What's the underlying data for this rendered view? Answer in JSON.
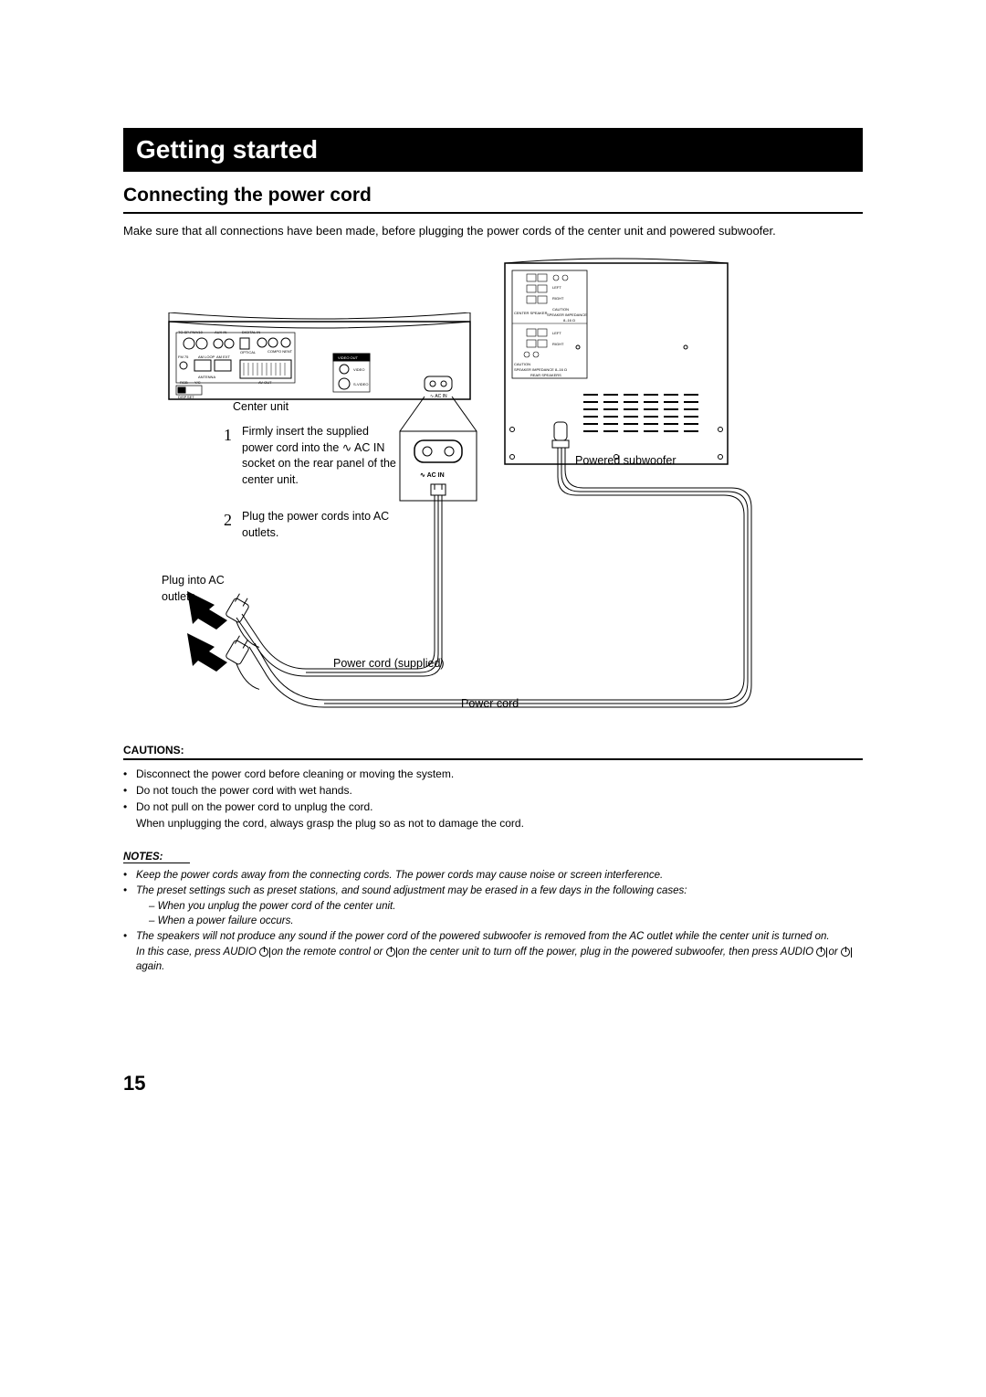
{
  "title": "Getting started",
  "section": "Connecting the power cord",
  "intro": "Make sure that all connections have been made, before plugging the power cords of the center unit and powered subwoofer.",
  "labels": {
    "center_unit": "Center unit",
    "powered_sub": "Powered subwoofer",
    "plug_outlets": "Plug into AC outlets.",
    "cord_supplied": "Power cord (supplied)",
    "cord": "Power cord",
    "ac_in": "AC IN"
  },
  "steps": [
    {
      "n": "1",
      "txt": "Firmly insert the supplied power cord into the ∿ AC IN socket on the rear panel of the center unit."
    },
    {
      "n": "2",
      "txt": "Plug the power cords into AC outlets."
    }
  ],
  "cautions_head": "CAUTIONS:",
  "cautions": [
    "Disconnect the power cord before cleaning or moving the system.",
    "Do not touch the power cord with wet hands.",
    "Do not pull on the power cord to unplug the cord.\nWhen unplugging the cord, always grasp the plug so as not to damage the cord."
  ],
  "notes_head": "NOTES:",
  "notes": [
    {
      "main": "Keep the power cords away from the connecting cords. The power cords may cause noise or screen interference."
    },
    {
      "main": "The preset settings such as preset stations, and sound adjustment may be erased in a few days in the following cases:",
      "subs": [
        "– When you unplug the power cord of the center unit.",
        "– When a power failure occurs."
      ]
    },
    {
      "main": "The speakers will not produce any sound if the power cord of the powered subwoofer is removed from the AC outlet while the center unit is turned on.",
      "extra": "In this case, press AUDIO [P] on the remote control or [P] on the center unit to turn off the power, plug in the powered subwoofer, then press AUDIO [P] or [P] again."
    }
  ],
  "page_number": "15",
  "panel_labels": {
    "to_sp": "TO SP-PWV10",
    "aux": "AUX IN",
    "digital": "DIGITAL IN",
    "optical": "OPTICAL",
    "compo": "COMPO NENT",
    "fm": "FM 75",
    "am": "AM LOOP",
    "ext": "AM EXT",
    "antenna": "ANTENNA",
    "av": "AV OUT",
    "video_out": "VIDEO OUT",
    "video": "VIDEO",
    "svideo": "S-VIDEO",
    "rgb": "RGB",
    "yc": "Y/C",
    "dispset": "DISP.SET",
    "ac": "AC IN",
    "center_spk": "CENTER SPEAKER",
    "left": "LEFT",
    "right": "RIGHT",
    "caution": "CAUTION",
    "imp": "SPEAKER IMPEDANCE",
    "rear_spk": "REAR SPEAKERS",
    "ohm": "8–16"
  },
  "colors": {
    "page_bg": "#ffffff",
    "text": "#000000",
    "title_bg": "#000000",
    "title_fg": "#ffffff",
    "stroke": "#000000"
  }
}
